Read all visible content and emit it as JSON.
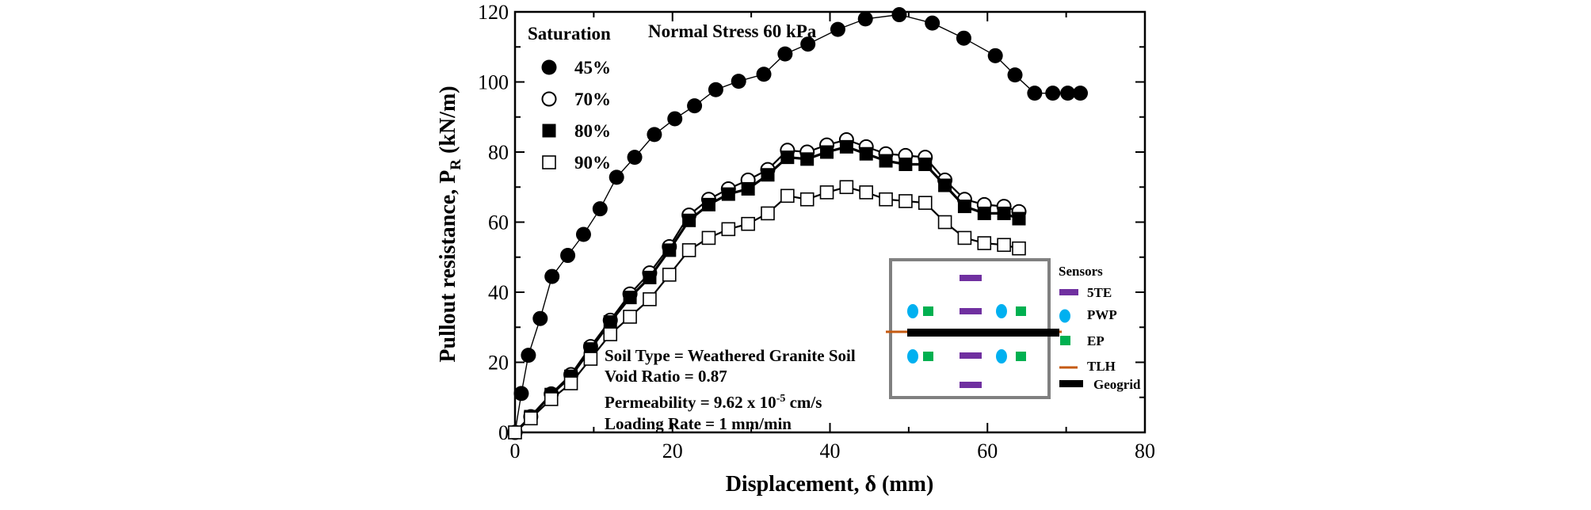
{
  "chart_data": {
    "type": "line",
    "xlabel": "Displacement, δ (mm)",
    "ylabel": "Pullout resistance, P_R (kN/m)",
    "ylabel_parts": {
      "main": "Pullout resistance, P",
      "sub": "R",
      "unit": " (kN/m)"
    },
    "xlim": [
      0,
      80
    ],
    "ylim": [
      0,
      120
    ],
    "xticks": [
      "0",
      "20",
      "40",
      "60",
      "80"
    ],
    "yticks": [
      "0",
      "20",
      "40",
      "60",
      "80",
      "100",
      "120"
    ],
    "grid": false,
    "legend": {
      "title": "Saturation",
      "placement": "top-left",
      "entries": [
        "45%",
        "70%",
        "80%",
        "90%"
      ]
    },
    "annotation_top": "Normal Stress 60 kPa",
    "soil_info": {
      "soil_type": "Soil Type = Weathered Granite Soil",
      "void_ratio": "Void Ratio = 0.87",
      "permeability_prefix": "Permeability = 9.62 x 10",
      "permeability_exp": "-5",
      "permeability_suffix": " cm/s",
      "loading_rate": "Loading Rate = 1 mm/min"
    },
    "sensor_legend": {
      "title": "Sensors",
      "items": [
        {
          "label": "5TE",
          "color": "#7030A0"
        },
        {
          "label": "PWP",
          "color": "#00B0F0"
        },
        {
          "label": "EP",
          "color": "#00B050"
        },
        {
          "label": "TLH",
          "color": "#C55A11"
        },
        {
          "label": "Geogrid",
          "color": "#000000"
        }
      ]
    },
    "series": [
      {
        "name": "45%",
        "marker": "filled-circle",
        "x": [
          0,
          0.8,
          1.7,
          3.2,
          4.7,
          6.7,
          8.7,
          10.8,
          12.9,
          15.2,
          17.7,
          20.3,
          22.8,
          25.5,
          28.4,
          31.6,
          34.3,
          37.2,
          41.0,
          44.5,
          48.8,
          53.0,
          57.0,
          61.0,
          63.5,
          66.0,
          68.3,
          70.2,
          71.8
        ],
        "y": [
          0,
          11.1,
          22.0,
          32.5,
          44.5,
          50.5,
          56.5,
          63.8,
          72.8,
          78.5,
          85.0,
          89.5,
          93.2,
          97.8,
          100.2,
          102.2,
          108.0,
          110.8,
          115.0,
          118.0,
          119.2,
          116.8,
          112.5,
          107.5,
          102.0,
          96.8,
          96.8,
          96.8,
          96.8
        ]
      },
      {
        "name": "70%",
        "marker": "open-circle",
        "x": [
          0,
          2.0,
          4.6,
          7.1,
          9.6,
          12.1,
          14.6,
          17.1,
          19.6,
          22.1,
          24.6,
          27.1,
          29.6,
          32.1,
          34.6,
          37.1,
          39.6,
          42.1,
          44.6,
          47.1,
          49.6,
          52.1,
          54.6,
          57.1,
          59.6,
          62.1,
          64.0
        ],
        "y": [
          0,
          4.5,
          11.0,
          16.5,
          24.5,
          32.0,
          39.5,
          45.5,
          53.0,
          62.0,
          66.5,
          69.5,
          72.0,
          75.0,
          80.5,
          80.0,
          82.0,
          83.5,
          81.5,
          79.5,
          79.0,
          78.5,
          72.0,
          66.5,
          65.0,
          64.5,
          63.0
        ]
      },
      {
        "name": "80%",
        "marker": "filled-square",
        "x": [
          0,
          2.0,
          4.6,
          7.1,
          9.6,
          12.1,
          14.6,
          17.1,
          19.6,
          22.1,
          24.6,
          27.1,
          29.6,
          32.1,
          34.6,
          37.1,
          39.6,
          42.1,
          44.6,
          47.1,
          49.6,
          52.1,
          54.6,
          57.1,
          59.6,
          62.1,
          64.0
        ],
        "y": [
          0,
          4.5,
          10.8,
          16.0,
          23.8,
          31.5,
          38.5,
          44.2,
          52.0,
          60.5,
          65.0,
          68.0,
          69.5,
          73.5,
          78.5,
          78.0,
          80.0,
          81.5,
          79.5,
          77.5,
          76.5,
          76.5,
          70.5,
          64.5,
          62.5,
          62.5,
          61.0
        ]
      },
      {
        "name": "90%",
        "marker": "open-square",
        "x": [
          0,
          2.0,
          4.6,
          7.1,
          9.6,
          12.1,
          14.6,
          17.1,
          19.6,
          22.1,
          24.6,
          27.1,
          29.6,
          32.1,
          34.6,
          37.1,
          39.6,
          42.1,
          44.6,
          47.1,
          49.6,
          52.1,
          54.6,
          57.1,
          59.6,
          62.1,
          64.0
        ],
        "y": [
          0,
          4.0,
          9.5,
          14.0,
          21.0,
          28.0,
          33.0,
          38.0,
          45.0,
          52.0,
          55.5,
          58.0,
          59.5,
          62.5,
          67.5,
          66.5,
          68.5,
          70.0,
          68.5,
          66.5,
          66.0,
          65.5,
          60.0,
          55.5,
          54.0,
          53.5,
          52.5
        ]
      }
    ]
  }
}
